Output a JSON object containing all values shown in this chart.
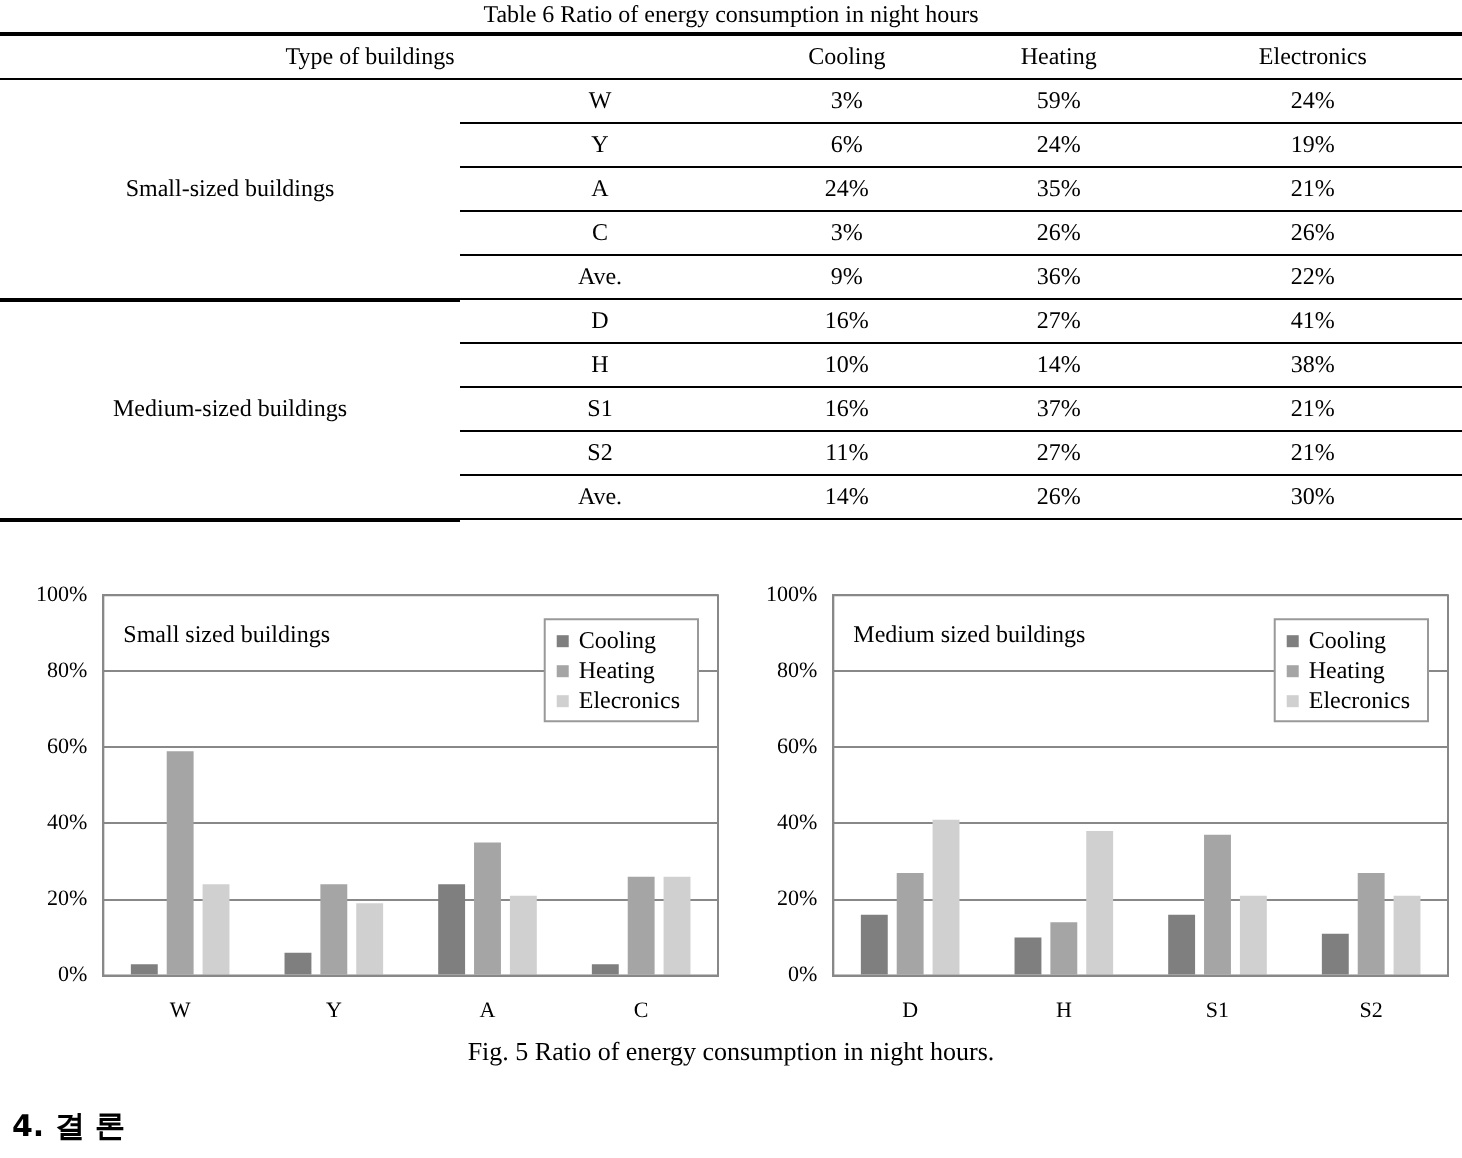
{
  "chart_data": [
    {
      "type": "other",
      "title": "Table 6   Ratio of energy consumption in night hours",
      "xlabel": "Type of buildings",
      "categories": [
        "Cooling",
        "Heating",
        "Electronics"
      ],
      "y_categories": [
        "W",
        "Y",
        "A",
        "C",
        "Ave.",
        "D",
        "H",
        "S1",
        "S2",
        "Ave."
      ],
      "y2_categories": [
        "Small-sized buildings",
        null,
        null,
        null,
        null,
        "Medium-sized buildings",
        null,
        null,
        null,
        null
      ],
      "cell_labels": [
        [
          "3%",
          "59%",
          "24%"
        ],
        [
          "6%",
          "24%",
          "19%"
        ],
        [
          "24%",
          "35%",
          "21%"
        ],
        [
          "3%",
          "26%",
          "26%"
        ],
        [
          "9%",
          "36%",
          "22%"
        ],
        [
          "16%",
          "27%",
          "41%"
        ],
        [
          "10%",
          "14%",
          "38%"
        ],
        [
          "16%",
          "37%",
          "21%"
        ],
        [
          "11%",
          "27%",
          "21%"
        ],
        [
          "14%",
          "26%",
          "30%"
        ]
      ]
    },
    {
      "type": "bar",
      "title": "Small sized buildings",
      "categories": [
        "W",
        "Y",
        "A",
        "C"
      ],
      "series": [
        {
          "name": "Cooling",
          "color": "#7f7f7f",
          "values": [
            3,
            6,
            24,
            3
          ]
        },
        {
          "name": "Heating",
          "color": "#a5a5a5",
          "values": [
            59,
            24,
            35,
            26
          ]
        },
        {
          "name": "Elecronics",
          "color": "#d0d0d0",
          "values": [
            24,
            19,
            21,
            26
          ]
        }
      ],
      "ylim": [
        0,
        100
      ],
      "yticks": [
        {
          "value": 0,
          "label": "0%"
        },
        {
          "value": 20,
          "label": "20%"
        },
        {
          "value": 40,
          "label": "40%"
        },
        {
          "value": 60,
          "label": "60%"
        },
        {
          "value": 80,
          "label": "80%"
        },
        {
          "value": 100,
          "label": "100%"
        }
      ],
      "grid": "y",
      "legend": "top right"
    },
    {
      "type": "bar",
      "title": "Medium sized buildings",
      "categories": [
        "D",
        "H",
        "S1",
        "S2"
      ],
      "series": [
        {
          "name": "Cooling",
          "color": "#7f7f7f",
          "values": [
            16,
            10,
            16,
            11
          ]
        },
        {
          "name": "Heating",
          "color": "#a5a5a5",
          "values": [
            27,
            14,
            37,
            27
          ]
        },
        {
          "name": "Elecronics",
          "color": "#d0d0d0",
          "values": [
            41,
            38,
            21,
            21
          ]
        }
      ],
      "ylim": [
        0,
        100
      ],
      "yticks": [
        {
          "value": 0,
          "label": "0%"
        },
        {
          "value": 20,
          "label": "20%"
        },
        {
          "value": 40,
          "label": "40%"
        },
        {
          "value": 60,
          "label": "60%"
        },
        {
          "value": 80,
          "label": "80%"
        },
        {
          "value": 100,
          "label": "100%"
        }
      ],
      "grid": "y",
      "legend": "top right",
      "annotations": [
        "Fig. 5   Ratio of energy consumption in night hours.",
        "4. 결  론"
      ]
    }
  ]
}
